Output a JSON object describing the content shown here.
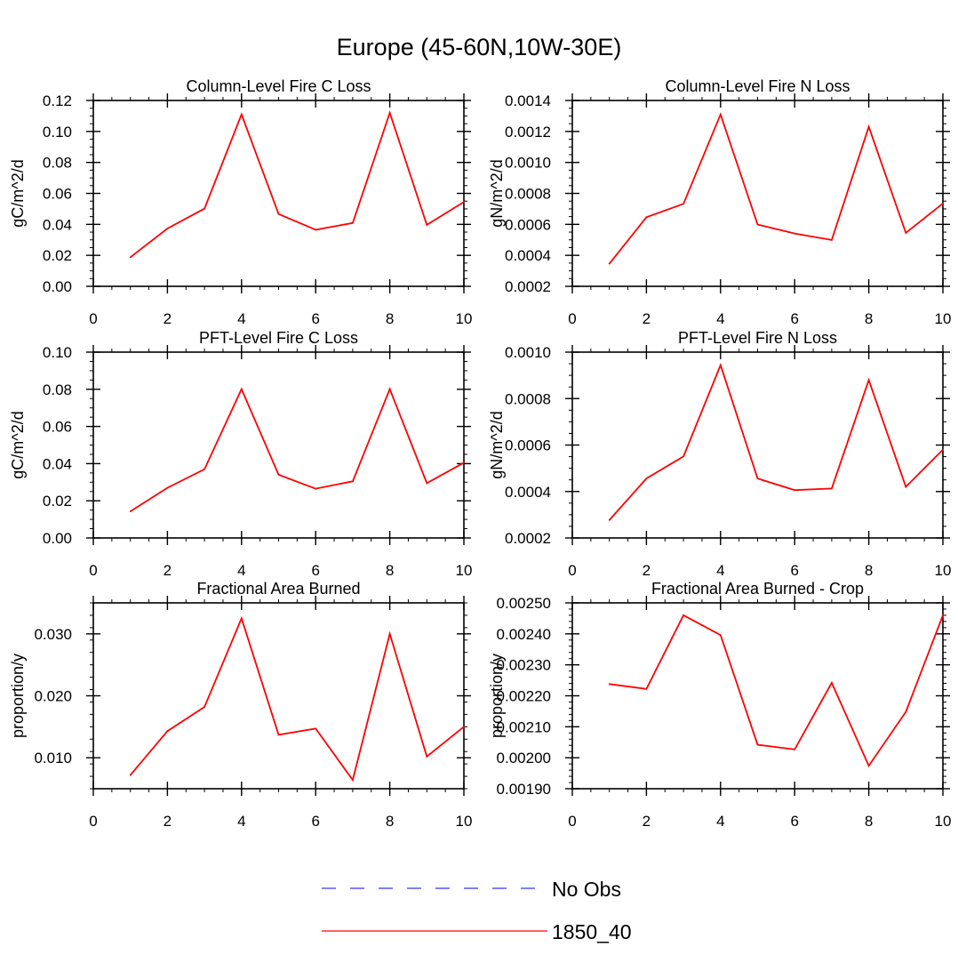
{
  "figure_title": "Europe (45-60N,10W-30E)",
  "colors": {
    "series": "#ff0000",
    "obs": "#3333ff",
    "axis": "#000000"
  },
  "legend": [
    {
      "label": "No Obs",
      "style": "dashed",
      "color": "#3333ff"
    },
    {
      "label": "1850_40",
      "style": "solid",
      "color": "#ff0000"
    }
  ],
  "chart_data": [
    {
      "type": "line",
      "title": "Column-Level Fire C Loss",
      "ylabel": "gC/m^2/d",
      "xlim": [
        0,
        10
      ],
      "ylim": [
        0,
        0.12
      ],
      "xticks": [
        0,
        2,
        4,
        6,
        8,
        10
      ],
      "xtick_labels": [
        "0",
        "2",
        "4",
        "6",
        "8",
        "10"
      ],
      "yticks": [
        0,
        0.02,
        0.04,
        0.06,
        0.08,
        0.1,
        0.12
      ],
      "ytick_labels": [
        "0.00",
        "0.02",
        "0.04",
        "0.06",
        "0.08",
        "0.10",
        "0.12"
      ],
      "yminor": 0.005,
      "series": [
        {
          "name": "1850_40",
          "x": [
            1,
            2,
            3,
            4,
            5,
            6,
            7,
            8,
            9,
            10
          ],
          "values": [
            0.0188,
            0.0373,
            0.0502,
            0.111,
            0.0467,
            0.0365,
            0.0409,
            0.112,
            0.0397,
            0.0545
          ]
        }
      ]
    },
    {
      "type": "line",
      "title": "Column-Level Fire N Loss",
      "ylabel": "gN/m^2/d",
      "xlim": [
        0,
        10
      ],
      "ylim": [
        0.0002,
        0.0014
      ],
      "xticks": [
        0,
        2,
        4,
        6,
        8,
        10
      ],
      "xtick_labels": [
        "0",
        "2",
        "4",
        "6",
        "8",
        "10"
      ],
      "yticks": [
        0.0002,
        0.0004,
        0.0006,
        0.0008,
        0.001,
        0.0012,
        0.0014
      ],
      "ytick_labels": [
        "0.0002",
        "0.0004",
        "0.0006",
        "0.0008",
        "0.0010",
        "0.0012",
        "0.0014"
      ],
      "yminor": 5e-05,
      "series": [
        {
          "name": "1850_40",
          "x": [
            1,
            2,
            3,
            4,
            5,
            6,
            7,
            8,
            9,
            10
          ],
          "values": [
            0.000346,
            0.000646,
            0.000733,
            0.00131,
            0.000599,
            0.000541,
            0.000499,
            0.00123,
            0.000545,
            0.000735
          ]
        }
      ]
    },
    {
      "type": "line",
      "title": "PFT-Level Fire C Loss",
      "ylabel": "gC/m^2/d",
      "xlim": [
        0,
        10
      ],
      "ylim": [
        0,
        0.1
      ],
      "xticks": [
        0,
        2,
        4,
        6,
        8,
        10
      ],
      "xtick_labels": [
        "0",
        "2",
        "4",
        "6",
        "8",
        "10"
      ],
      "yticks": [
        0,
        0.02,
        0.04,
        0.06,
        0.08,
        0.1
      ],
      "ytick_labels": [
        "0.00",
        "0.02",
        "0.04",
        "0.06",
        "0.08",
        "0.10"
      ],
      "yminor": 0.005,
      "series": [
        {
          "name": "1850_40",
          "x": [
            1,
            2,
            3,
            4,
            5,
            6,
            7,
            8,
            9,
            10
          ],
          "values": [
            0.0143,
            0.027,
            0.037,
            0.0801,
            0.034,
            0.0265,
            0.0305,
            0.0801,
            0.0295,
            0.0405
          ]
        }
      ]
    },
    {
      "type": "line",
      "title": "PFT-Level Fire N Loss",
      "ylabel": "gN/m^2/d",
      "xlim": [
        0,
        10
      ],
      "ylim": [
        0.0002,
        0.001
      ],
      "xticks": [
        0,
        2,
        4,
        6,
        8,
        10
      ],
      "xtick_labels": [
        "0",
        "2",
        "4",
        "6",
        "8",
        "10"
      ],
      "yticks": [
        0.0002,
        0.0004,
        0.0006,
        0.0008,
        0.001
      ],
      "ytick_labels": [
        "0.0002",
        "0.0004",
        "0.0006",
        "0.0008",
        "0.0010"
      ],
      "yminor": 5e-05,
      "series": [
        {
          "name": "1850_40",
          "x": [
            1,
            2,
            3,
            4,
            5,
            6,
            7,
            8,
            9,
            10
          ],
          "values": [
            0.000277,
            0.000456,
            0.000551,
            0.000944,
            0.000456,
            0.000406,
            0.000413,
            0.00088,
            0.00042,
            0.00058
          ]
        }
      ]
    },
    {
      "type": "line",
      "title": "Fractional Area Burned",
      "ylabel": "proportion/y",
      "xlim": [
        0,
        10
      ],
      "ylim": [
        0.005,
        0.035
      ],
      "xticks": [
        0,
        2,
        4,
        6,
        8,
        10
      ],
      "xtick_labels": [
        "0",
        "2",
        "4",
        "6",
        "8",
        "10"
      ],
      "yticks": [
        0.01,
        0.02,
        0.03
      ],
      "ytick_labels": [
        "0.010",
        "0.020",
        "0.030"
      ],
      "yminor": 0.002,
      "series": [
        {
          "name": "1850_40",
          "x": [
            1,
            2,
            3,
            4,
            5,
            6,
            7,
            8,
            9,
            10
          ],
          "values": [
            0.0072,
            0.0143,
            0.0182,
            0.0325,
            0.0137,
            0.0147,
            0.0064,
            0.03,
            0.0102,
            0.015
          ]
        }
      ]
    },
    {
      "type": "line",
      "title": "Fractional Area Burned - Crop",
      "ylabel": "proportion/y",
      "xlim": [
        0,
        10
      ],
      "ylim": [
        0.0019,
        0.0025
      ],
      "xticks": [
        0,
        2,
        4,
        6,
        8,
        10
      ],
      "xtick_labels": [
        "0",
        "2",
        "4",
        "6",
        "8",
        "10"
      ],
      "yticks": [
        0.0019,
        0.002,
        0.0021,
        0.0022,
        0.0023,
        0.0024,
        0.0025
      ],
      "ytick_labels": [
        "0.00190",
        "0.00200",
        "0.00210",
        "0.00220",
        "0.00230",
        "0.00240",
        "0.00250"
      ],
      "yminor": 2e-05,
      "series": [
        {
          "name": "1850_40",
          "x": [
            1,
            2,
            3,
            4,
            5,
            6,
            7,
            8,
            9,
            10
          ],
          "values": [
            0.002238,
            0.002222,
            0.00246,
            0.002396,
            0.002042,
            0.002027,
            0.002242,
            0.001974,
            0.002148,
            0.00246
          ]
        }
      ]
    }
  ]
}
